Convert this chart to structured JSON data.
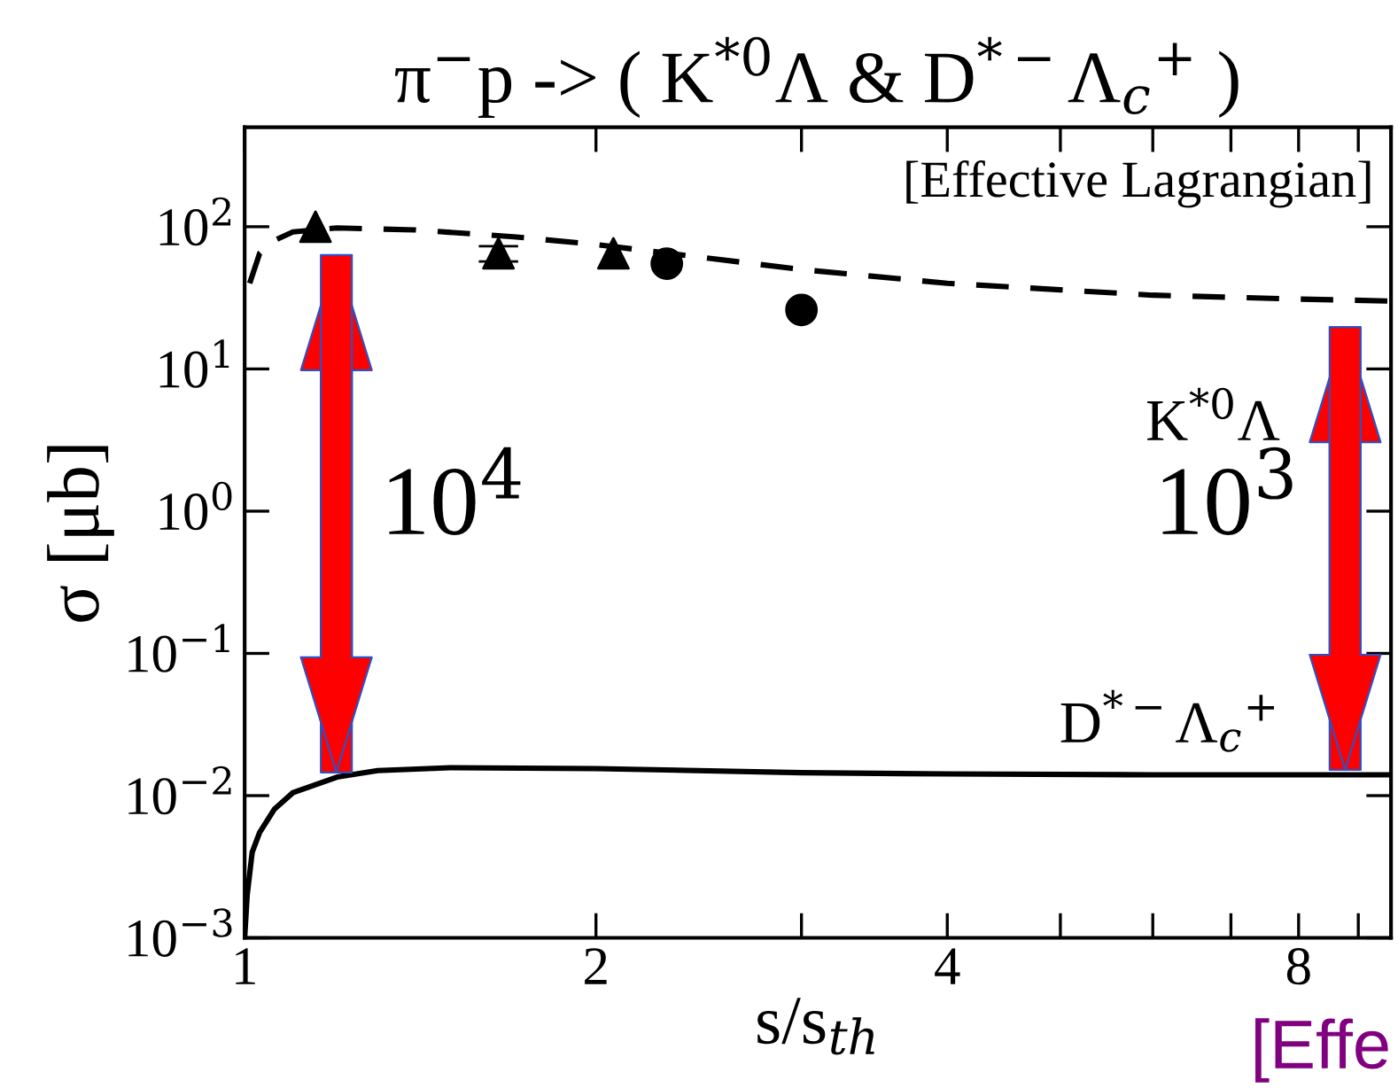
{
  "chart_data": {
    "type": "line",
    "title": "π$^{−}$p -> ( K$^{*0}$Λ & D$^{*−}$Λ$_{c}$$^{+}$ )",
    "xlabel": "s/s$_{th}$",
    "ylabel": "σ [μb]",
    "log": "xy",
    "xlim": [
      1,
      9.6
    ],
    "ylim": [
      0.001,
      500
    ],
    "xticks": [
      1,
      2,
      {
        "value": 3,
        "label": null
      },
      4,
      {
        "value": 5,
        "label": null
      },
      {
        "value": 6,
        "label": null
      },
      {
        "value": 7,
        "label": null
      },
      8,
      {
        "value": 9,
        "label": null
      }
    ],
    "yticks": [
      {
        "value": 0.001,
        "label": "10$^{−3}$"
      },
      {
        "value": 0.01,
        "label": "10$^{−2}$"
      },
      {
        "value": 0.1,
        "label": "10$^{−1}$"
      },
      {
        "value": 1,
        "label": "10$^{0}$"
      },
      {
        "value": 10,
        "label": "10$^{1}$"
      },
      {
        "value": 100,
        "label": "10$^{2}$"
      }
    ],
    "grid": false,
    "series": [
      {
        "name": "K$^{*0}$Λ",
        "line_style": "dashed",
        "color": "#000000",
        "x": [
          1.01,
          1.03,
          1.06,
          1.1,
          1.2,
          1.4,
          1.7,
          2,
          2.5,
          3,
          4,
          5,
          6,
          8,
          9.6
        ],
        "values": [
          40,
          65,
          80,
          92,
          98,
          95,
          85,
          75,
          60,
          50,
          40,
          36,
          33,
          31,
          30
        ]
      },
      {
        "name": "D$^{*−}$Λ$_{c}$$^{+}$",
        "line_style": "solid",
        "color": "#000000",
        "x": [
          1.0,
          1.005,
          1.015,
          1.03,
          1.06,
          1.1,
          1.2,
          1.3,
          1.5,
          2,
          3,
          4,
          6,
          9.6
        ],
        "values": [
          0.001,
          0.002,
          0.004,
          0.0055,
          0.008,
          0.0105,
          0.0135,
          0.015,
          0.0157,
          0.0155,
          0.0145,
          0.0142,
          0.014,
          0.014
        ]
      },
      {
        "type": "scatter",
        "marker": "triangle",
        "color": "#000000",
        "x": [
          1.15,
          1.65,
          2.07
        ],
        "values": [
          100,
          65,
          65
        ],
        "errors": [
          null,
          8,
          null
        ]
      },
      {
        "type": "scatter",
        "marker": "circle",
        "color": "#000000",
        "x": [
          2.3,
          3.0
        ],
        "values": [
          55,
          26
        ]
      }
    ],
    "annotations": [
      "[Effective Lagrangian]",
      "10$^{4}$",
      "10$^{3}$",
      "[Effe"
    ]
  }
}
